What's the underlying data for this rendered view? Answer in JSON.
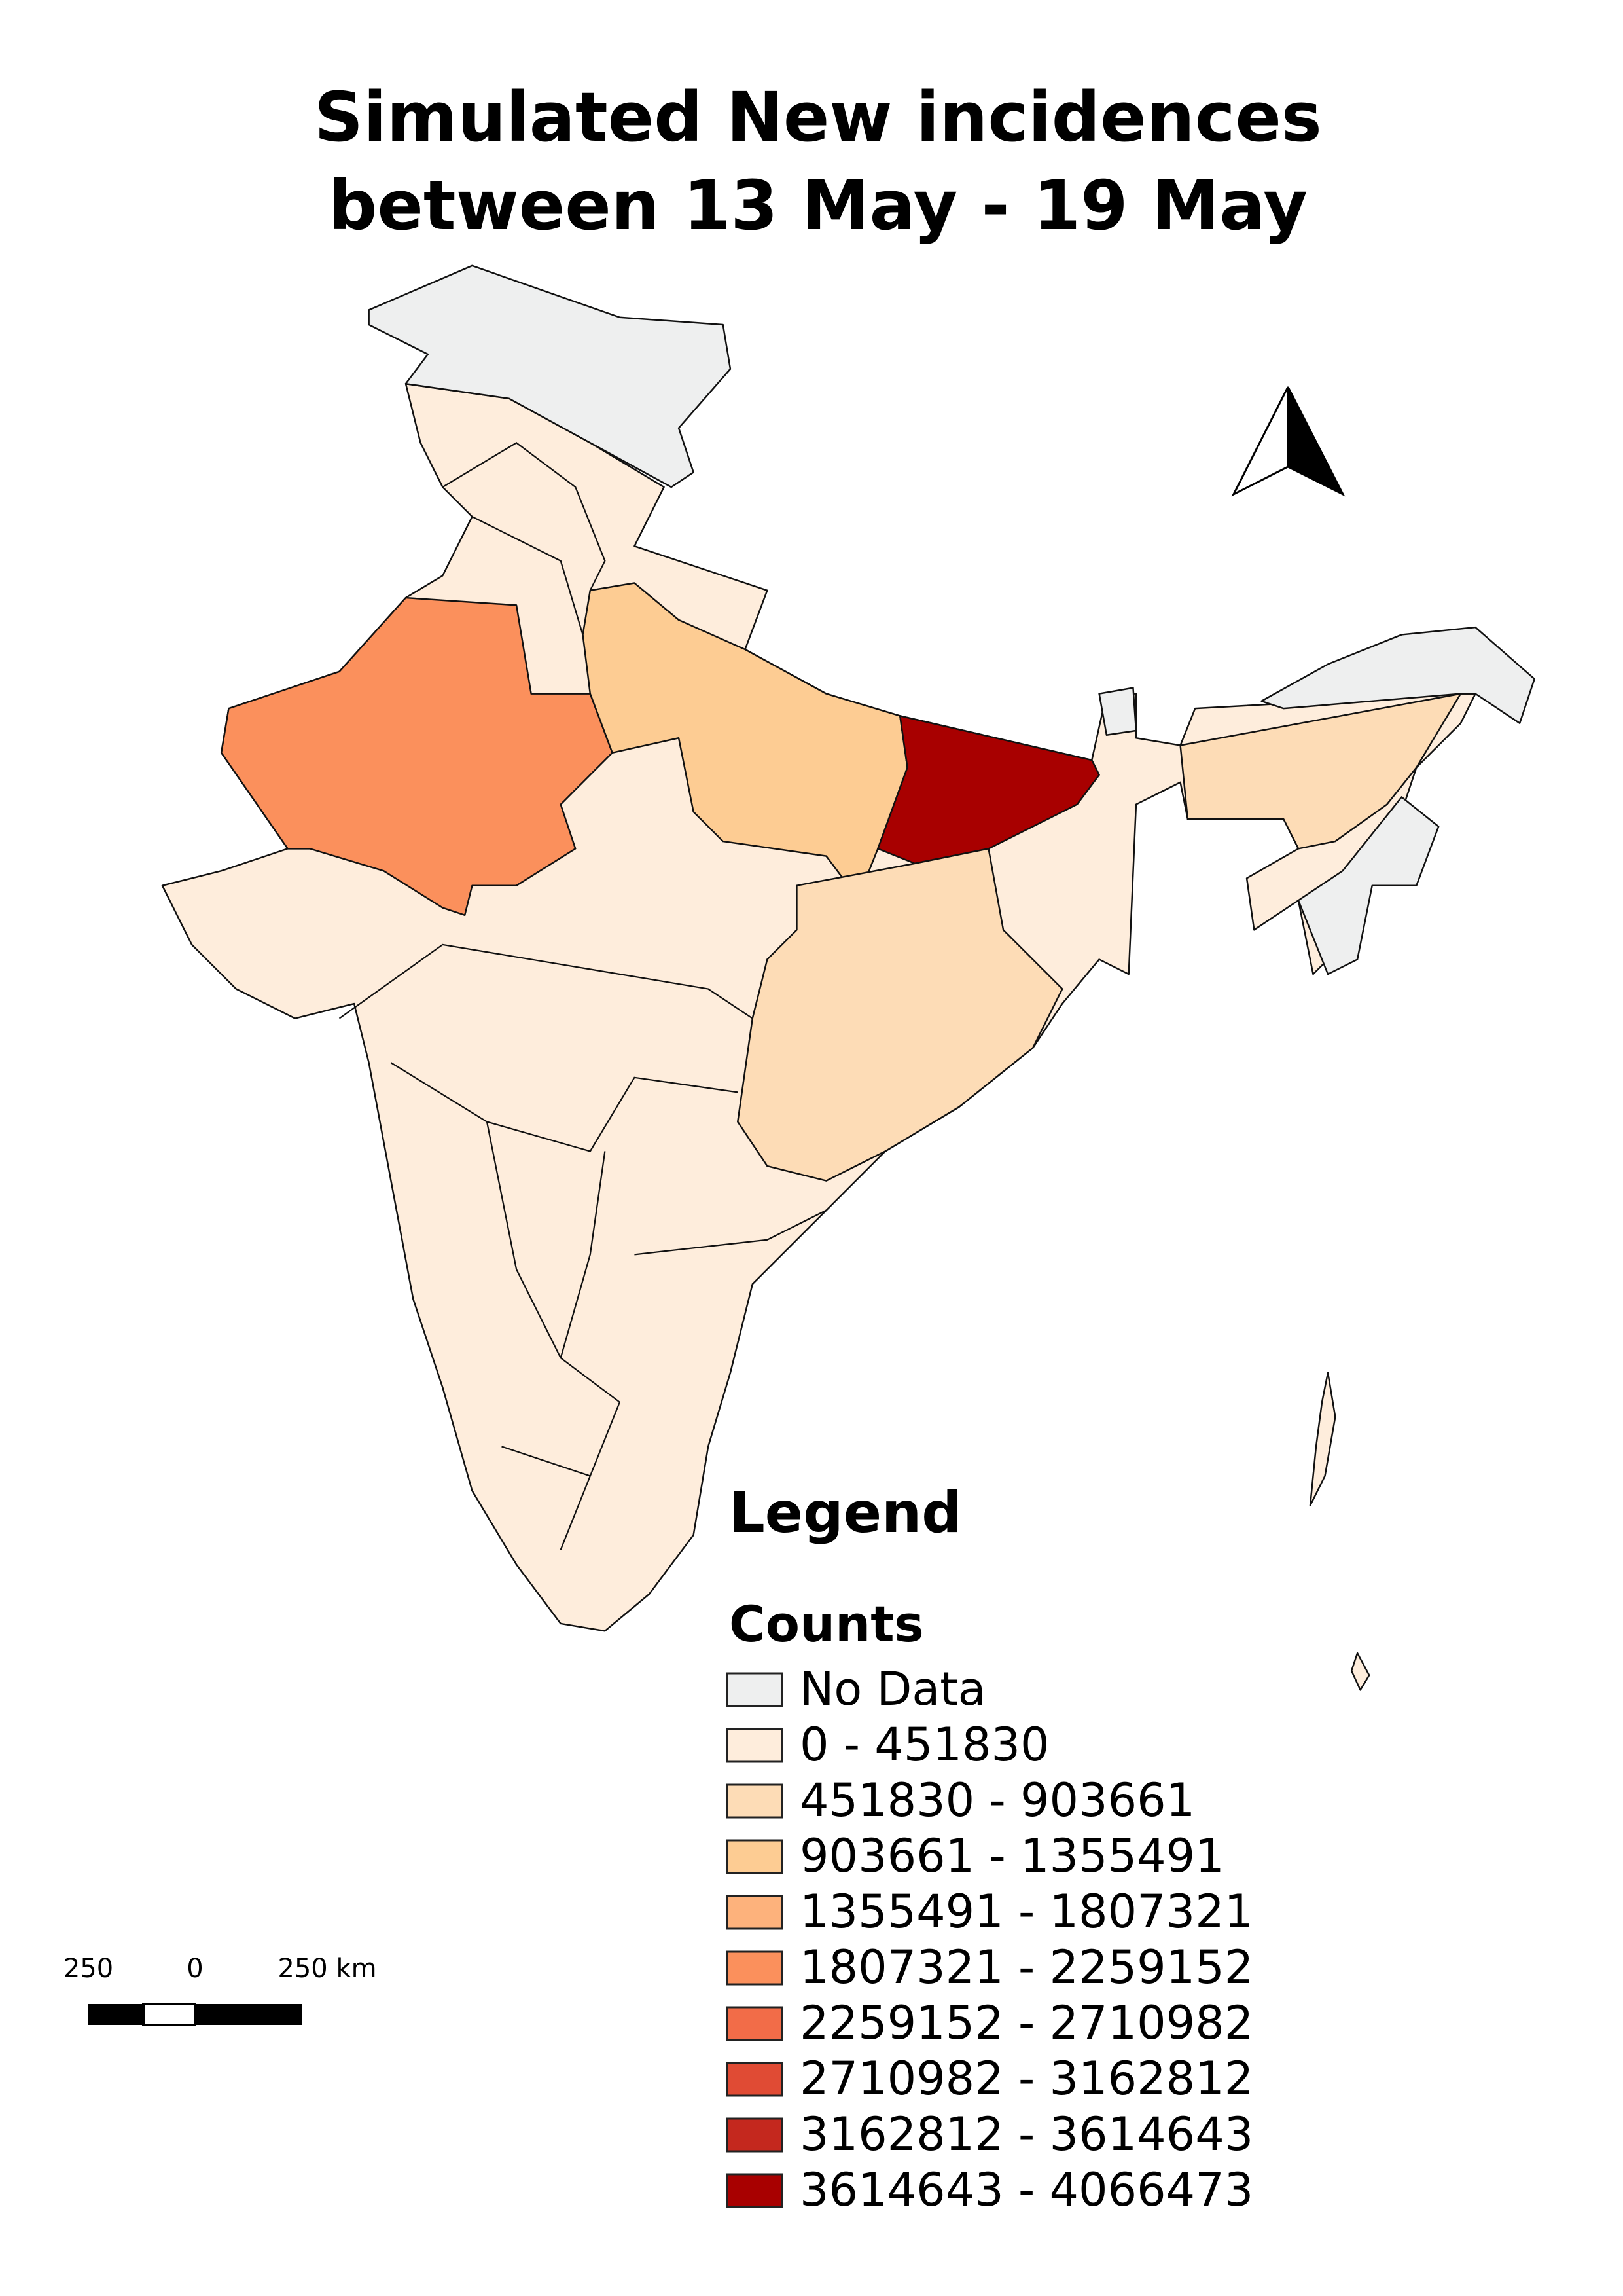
{
  "map": {
    "title_lines": [
      "Simulated New incidences",
      "between 13 May - 19 May"
    ],
    "legend": {
      "title": "Legend",
      "subtitle": "Counts",
      "items": [
        {
          "label": "No Data",
          "color": "#eeefef"
        },
        {
          "label": "0 - 451830",
          "color": "#feeddc"
        },
        {
          "label": "451830 - 903661",
          "color": "#fddcb6"
        },
        {
          "label": "903661 - 1355491",
          "color": "#fdcc93"
        },
        {
          "label": "1355491 - 1807321",
          "color": "#fdb27c"
        },
        {
          "label": "1807321 - 2259152",
          "color": "#fb905c"
        },
        {
          "label": "2259152 - 2710982",
          "color": "#f26c48"
        },
        {
          "label": "2710982 - 3162812",
          "color": "#e04b34"
        },
        {
          "label": "3162812 - 3614643",
          "color": "#c4281e"
        },
        {
          "label": "3614643 - 4066473",
          "color": "#a80000"
        }
      ]
    },
    "scale_bar": {
      "labels": [
        "250",
        "0",
        "250 km"
      ]
    }
  }
}
